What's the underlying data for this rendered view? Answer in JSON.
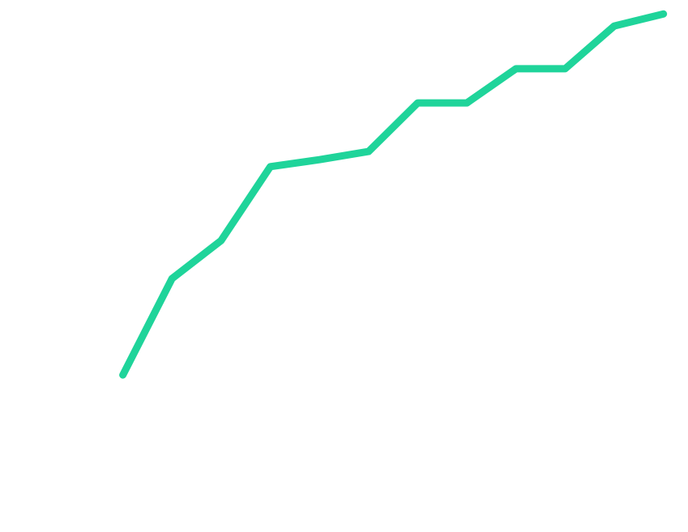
{
  "chart_data": {
    "type": "line",
    "x": [
      0,
      1,
      2,
      3,
      4,
      5,
      6,
      7,
      8,
      9,
      10,
      11
    ],
    "series": [
      {
        "color": "#1fd49a",
        "values": [
          5.6,
          30.4,
          40.2,
          59.2,
          61,
          63.1,
          75.6,
          75.6,
          84.4,
          84.4,
          95.4,
          98.5
        ]
      }
    ],
    "xlim": [
      -2.5,
      11.5
    ],
    "ylim": [
      0,
      100
    ]
  }
}
